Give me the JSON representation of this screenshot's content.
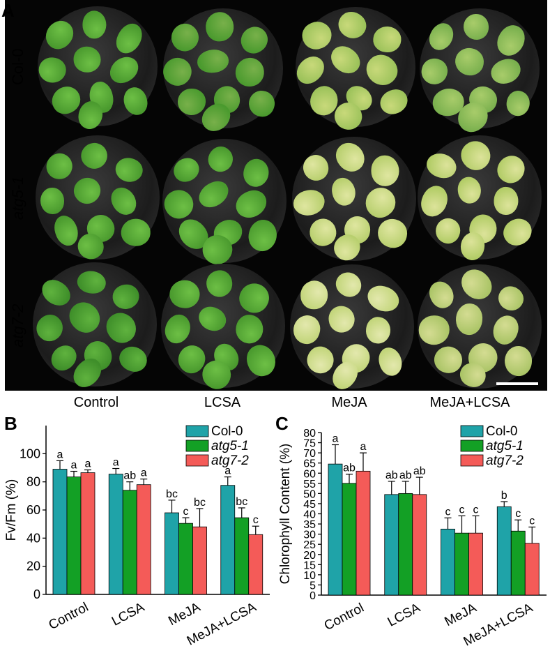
{
  "figure": {
    "panel_a_label": "A",
    "panel_b_label": "B",
    "panel_c_label": "C",
    "photo_rows": [
      "Col-0",
      "atg5-1",
      "atg7-2"
    ],
    "photo_columns": [
      "Control",
      "LCSA",
      "MeJA",
      "MeJA+LCSA"
    ]
  },
  "colors": {
    "Col-0": "#1fa3a8",
    "atg5-1": "#13a025",
    "atg7-2": "#f45b58"
  },
  "chart_data": [
    {
      "type": "bar",
      "panel": "B",
      "ylabel": "Fv/Fm (%)",
      "xlabel": "",
      "ylim": [
        0,
        120
      ],
      "yticks": [
        0,
        20,
        40,
        60,
        80,
        100
      ],
      "categories": [
        "Control",
        "LCSA",
        "MeJA",
        "MeJA+LCSA"
      ],
      "legend_position": "top-right",
      "series": [
        {
          "name": "Col-0",
          "values": [
            89,
            85.5,
            58,
            77.5
          ],
          "errors": [
            6,
            4,
            9,
            6
          ],
          "letters": [
            "a",
            "a",
            "bc",
            "a"
          ]
        },
        {
          "name": "atg5-1",
          "values": [
            83.5,
            74,
            50.5,
            54.5
          ],
          "errors": [
            4,
            6,
            4,
            7
          ],
          "letters": [
            "a",
            "ab",
            "c",
            "bc"
          ]
        },
        {
          "name": "atg7-2",
          "values": [
            86.5,
            78,
            48,
            42.5
          ],
          "errors": [
            2,
            4,
            13,
            6
          ],
          "letters": [
            "a",
            "a",
            "bc",
            "c"
          ]
        }
      ]
    },
    {
      "type": "bar",
      "panel": "C",
      "ylabel": "Chlorophyll Content (%)",
      "xlabel": "",
      "ylim": [
        0,
        80
      ],
      "yticks": [
        0,
        5,
        10,
        15,
        20,
        25,
        30,
        35,
        40,
        45,
        50,
        55,
        60,
        65,
        70,
        75,
        80
      ],
      "categories": [
        "Control",
        "LCSA",
        "MeJA",
        "MeJA+LCSA"
      ],
      "legend_position": "top-right",
      "series": [
        {
          "name": "Col-0",
          "values": [
            64.5,
            49.5,
            32.5,
            43.5
          ],
          "errors": [
            9.5,
            6.5,
            5.5,
            2.5
          ],
          "letters": [
            "a",
            "ab",
            "c",
            "b"
          ]
        },
        {
          "name": "atg5-1",
          "values": [
            55,
            50,
            30.5,
            31.5
          ],
          "errors": [
            4.5,
            6,
            8.5,
            5.5
          ],
          "letters": [
            "ab",
            "ab",
            "c",
            "c"
          ]
        },
        {
          "name": "atg7-2",
          "values": [
            61,
            49.5,
            30.5,
            25.5
          ],
          "errors": [
            9,
            8.5,
            8.5,
            8
          ],
          "letters": [
            "a",
            "ab",
            "c",
            "c"
          ]
        }
      ]
    }
  ]
}
